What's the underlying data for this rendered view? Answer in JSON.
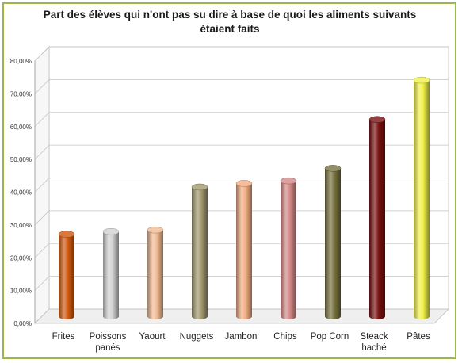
{
  "chart_data": {
    "type": "bar",
    "title_lines": [
      "Part des élèves qui n'ont pas su dire à base de quoi les aliments suivants",
      "étaient faits"
    ],
    "categories": [
      [
        "Frites"
      ],
      [
        "Poissons",
        "panés"
      ],
      [
        "Yaourt"
      ],
      [
        "Nuggets"
      ],
      [
        "Jambon"
      ],
      [
        "Chips"
      ],
      [
        "Pop Corn"
      ],
      [
        "Steack",
        "haché"
      ],
      [
        "Pâtes"
      ]
    ],
    "values": [
      25.0,
      25.8,
      26.3,
      39.4,
      40.5,
      41.3,
      45.1,
      60.0,
      72.0
    ],
    "colors": [
      "#d0580f",
      "#d2d2d2",
      "#f1bb94",
      "#a39a70",
      "#f3ad82",
      "#d48886",
      "#77723f",
      "#7a1010",
      "#f0f048"
    ],
    "yticks": [
      "0,00%",
      "10,00%",
      "20,00%",
      "30,00%",
      "40,00%",
      "50,00%",
      "60,00%",
      "70,00%",
      "80,00%"
    ],
    "ylim": [
      0,
      80
    ],
    "grid": true,
    "legend": "none"
  }
}
